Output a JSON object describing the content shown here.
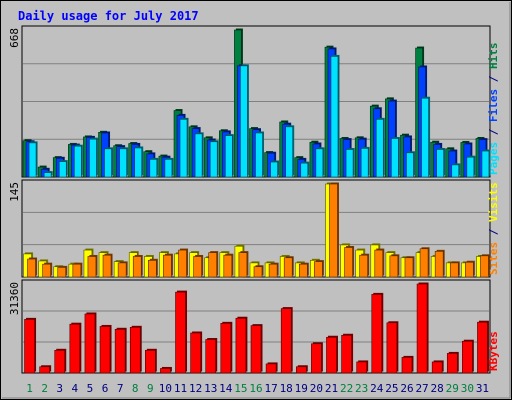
{
  "colors": {
    "hits": "#008040",
    "files": "#0040ff",
    "pages": "#00e0ff",
    "visits": "#ffff00",
    "sites": "#ff8000",
    "kbytes": "#ff0000",
    "title": "#0000ff",
    "weekend_day": "#008040",
    "weekday": "#000080",
    "panel_bg": "#c0c0c0",
    "grid": "#808080"
  },
  "chart_data": {
    "type": "bar",
    "title": "Daily usage for July 2017",
    "categories": [
      "1",
      "2",
      "3",
      "4",
      "5",
      "6",
      "7",
      "8",
      "9",
      "10",
      "11",
      "12",
      "13",
      "14",
      "15",
      "16",
      "17",
      "18",
      "19",
      "20",
      "21",
      "22",
      "23",
      "24",
      "25",
      "26",
      "27",
      "28",
      "29",
      "30",
      "31"
    ],
    "weekend_days": [
      "1",
      "2",
      "8",
      "9",
      "15",
      "16",
      "22",
      "23",
      "29",
      "30"
    ],
    "panels": [
      {
        "id": "hits-files-pages",
        "max_label": "668",
        "ylim": [
          0,
          668
        ],
        "side_label_parts": [
          {
            "text": "Pages",
            "color_key": "pages"
          },
          {
            "text": " / ",
            "color_key": "weekday"
          },
          {
            "text": "Files",
            "color_key": "files"
          },
          {
            "text": " / ",
            "color_key": "weekday"
          },
          {
            "text": "Hits",
            "color_key": "hits"
          }
        ],
        "series": [
          {
            "name": "Hits",
            "color_key": "hits",
            "values": [
              165,
              45,
              88,
              148,
              182,
              203,
              142,
              152,
              115,
              95,
              302,
              228,
              178,
              210,
              668,
              220,
              111,
              250,
              88,
              158,
              590,
              175,
              178,
              322,
              355,
              190,
              586,
              158,
              128,
              157,
              175
            ]
          },
          {
            "name": "Files",
            "color_key": "files",
            "values": [
              160,
              35,
              85,
              145,
              180,
              200,
              138,
              148,
              105,
              90,
              280,
              220,
              168,
              205,
              505,
              215,
              108,
              240,
              80,
              150,
              582,
              170,
              172,
              310,
              345,
              182,
              500,
              148,
              118,
              150,
              170
            ]
          },
          {
            "name": "Pages",
            "color_key": "pages",
            "values": [
              155,
              20,
              70,
              140,
              172,
              128,
              128,
              132,
              80,
              80,
              262,
              196,
              160,
              188,
              505,
              200,
              68,
              228,
              63,
              128,
              548,
              125,
              130,
              262,
              175,
              110,
              358,
              125,
              55,
              90,
              118
            ]
          }
        ]
      },
      {
        "id": "visits-sites",
        "max_label": "145",
        "ylim": [
          0,
          145
        ],
        "side_label_parts": [
          {
            "text": "Sites",
            "color_key": "sites"
          },
          {
            "text": " / ",
            "color_key": "weekday"
          },
          {
            "text": "Visits",
            "color_key": "visits"
          }
        ],
        "series": [
          {
            "name": "Visits",
            "color_key": "visits",
            "values": [
              36,
              25,
              16,
              20,
              42,
              38,
              24,
              38,
              32,
              38,
              36,
              38,
              30,
              38,
              48,
              22,
              22,
              32,
              22,
              26,
              145,
              50,
              42,
              50,
              38,
              30,
              38,
              32,
              22,
              22,
              32
            ]
          },
          {
            "name": "Sites",
            "color_key": "sites",
            "values": [
              28,
              20,
              15,
              20,
              32,
              34,
              22,
              32,
              26,
              34,
              42,
              32,
              38,
              34,
              38,
              16,
              20,
              30,
              20,
              24,
              145,
              46,
              34,
              42,
              33,
              30,
              44,
              40,
              22,
              23,
              33
            ]
          }
        ]
      },
      {
        "id": "kbytes",
        "max_label": "31360",
        "ylim": [
          0,
          31360
        ],
        "side_label_parts": [
          {
            "text": "KBytes",
            "color_key": "kbytes"
          }
        ],
        "series": [
          {
            "name": "KBytes",
            "color_key": "kbytes",
            "values": [
              18900,
              2200,
              8000,
              17200,
              20800,
              16400,
              15400,
              16100,
              8000,
              1600,
              28500,
              14100,
              11800,
              17500,
              19300,
              16700,
              3200,
              22700,
              2200,
              10300,
              12600,
              13300,
              3900,
              27700,
              17700,
              5500,
              31360,
              3900,
              6900,
              11200,
              17900
            ]
          }
        ]
      }
    ]
  }
}
